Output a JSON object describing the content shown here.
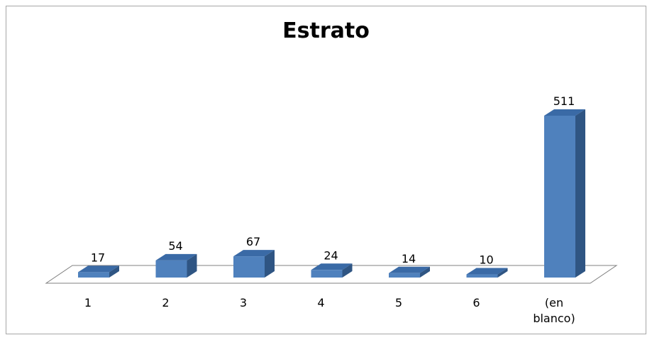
{
  "chart_data": {
    "type": "bar",
    "title": "Estrato",
    "categories": [
      "1",
      "2",
      "3",
      "4",
      "5",
      "6",
      "(en blanco)"
    ],
    "values": [
      17,
      54,
      67,
      24,
      14,
      10,
      511
    ],
    "category_label_lines": [
      [
        "1"
      ],
      [
        "2"
      ],
      [
        "3"
      ],
      [
        "4"
      ],
      [
        "5"
      ],
      [
        "6"
      ],
      [
        "(en",
        "blanco)"
      ]
    ],
    "ylim": [
      0,
      600
    ],
    "colors": {
      "front": "#4f81bd",
      "top": "#3a6aa6",
      "side": "#2f5583"
    },
    "grid": false,
    "legend": "none",
    "three_d": true
  }
}
